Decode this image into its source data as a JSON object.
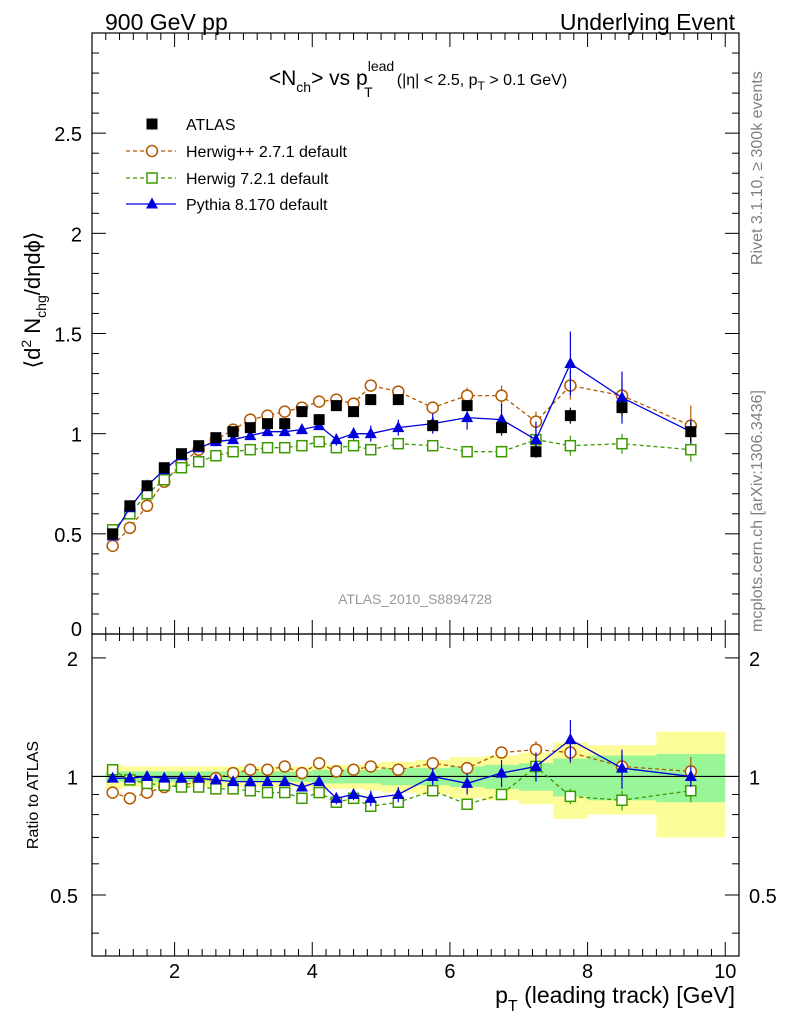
{
  "header": {
    "left": "900 GeV pp",
    "right": "Underlying Event"
  },
  "side_text": {
    "rivet": "Rivet 3.1.10, ≥ 300k events",
    "mcplots": "mcplots.cern.ch [arXiv:1306.3436]"
  },
  "chart_data": [
    {
      "type": "scatter",
      "title": {
        "part1": "<N",
        "sub1": "ch",
        "part2": "> vs p",
        "sup2": "lead",
        "sub2": "T",
        "cuts_a": "(|η| < 2.5, p",
        "cuts_sub": "T",
        "cuts_b": " > 0.1 GeV)"
      },
      "ylabel": {
        "a": "⟨d",
        "sup": "2",
        "b": " N",
        "sub": "chg",
        "c": "/dηdϕ⟩"
      },
      "ylim": [
        0,
        3
      ],
      "yticks": [
        0.5,
        1,
        1.5,
        2,
        2.5
      ],
      "ytick_labels": [
        "0.5",
        "1",
        "1.5",
        "2",
        "2.5"
      ],
      "watermark": "ATLAS_2010_S8894728",
      "series": [
        {
          "name": "ATLAS",
          "color": "#000000",
          "marker": "filled-square",
          "x": [
            1.1,
            1.35,
            1.6,
            1.85,
            2.1,
            2.35,
            2.6,
            2.85,
            3.1,
            3.35,
            3.6,
            3.85,
            4.1,
            4.35,
            4.6,
            4.85,
            5.25,
            5.75,
            6.25,
            6.75,
            7.25,
            7.75,
            8.5,
            9.5
          ],
          "y": [
            0.5,
            0.64,
            0.74,
            0.83,
            0.9,
            0.94,
            0.98,
            1.01,
            1.03,
            1.05,
            1.05,
            1.11,
            1.07,
            1.14,
            1.11,
            1.17,
            1.17,
            1.04,
            1.14,
            1.03,
            0.91,
            1.09,
            1.13,
            1.01
          ],
          "yerr": [
            0.01,
            0.01,
            0.01,
            0.01,
            0.01,
            0.01,
            0.01,
            0.01,
            0.01,
            0.01,
            0.01,
            0.01,
            0.01,
            0.01,
            0.01,
            0.01,
            0.02,
            0.02,
            0.02,
            0.03,
            0.03,
            0.04,
            0.04,
            0.05
          ]
        },
        {
          "name": "Herwig++ 2.7.1 default",
          "color": "#b35900",
          "marker": "open-circle",
          "line": "dashed",
          "x": [
            1.1,
            1.35,
            1.6,
            1.85,
            2.1,
            2.35,
            2.6,
            2.85,
            3.1,
            3.35,
            3.6,
            3.85,
            4.1,
            4.35,
            4.6,
            4.85,
            5.25,
            5.75,
            6.25,
            6.75,
            7.25,
            7.75,
            8.5,
            9.5
          ],
          "y": [
            0.44,
            0.53,
            0.64,
            0.76,
            0.85,
            0.92,
            0.97,
            1.02,
            1.07,
            1.09,
            1.11,
            1.13,
            1.16,
            1.17,
            1.15,
            1.24,
            1.21,
            1.13,
            1.19,
            1.19,
            1.06,
            1.24,
            1.19,
            1.04
          ],
          "yerr": [
            0.01,
            0.01,
            0.01,
            0.01,
            0.01,
            0.01,
            0.01,
            0.01,
            0.01,
            0.01,
            0.01,
            0.01,
            0.01,
            0.01,
            0.02,
            0.02,
            0.02,
            0.03,
            0.04,
            0.05,
            0.05,
            0.07,
            0.08,
            0.1
          ]
        },
        {
          "name": "Herwig 7.2.1 default",
          "color": "#3c9a00",
          "marker": "open-square",
          "line": "dashed",
          "x": [
            1.1,
            1.35,
            1.6,
            1.85,
            2.1,
            2.35,
            2.6,
            2.85,
            3.1,
            3.35,
            3.6,
            3.85,
            4.1,
            4.35,
            4.6,
            4.85,
            5.25,
            5.75,
            6.25,
            6.75,
            7.25,
            7.75,
            8.5,
            9.5
          ],
          "y": [
            0.52,
            0.6,
            0.7,
            0.77,
            0.83,
            0.86,
            0.89,
            0.91,
            0.92,
            0.93,
            0.93,
            0.94,
            0.96,
            0.93,
            0.94,
            0.92,
            0.95,
            0.94,
            0.91,
            0.91,
            0.97,
            0.94,
            0.95,
            0.92
          ],
          "yerr": [
            0.01,
            0.01,
            0.01,
            0.01,
            0.01,
            0.01,
            0.01,
            0.01,
            0.01,
            0.01,
            0.01,
            0.01,
            0.01,
            0.01,
            0.02,
            0.02,
            0.02,
            0.02,
            0.02,
            0.03,
            0.04,
            0.05,
            0.05,
            0.06
          ]
        },
        {
          "name": "Pythia 8.170 default",
          "color": "#0000dd",
          "marker": "filled-triangle",
          "line": "solid",
          "x": [
            1.1,
            1.35,
            1.6,
            1.85,
            2.1,
            2.35,
            2.6,
            2.85,
            3.1,
            3.35,
            3.6,
            3.85,
            4.1,
            4.35,
            4.6,
            4.85,
            5.25,
            5.75,
            6.25,
            6.75,
            7.25,
            7.75,
            8.5,
            9.5
          ],
          "y": [
            0.49,
            0.63,
            0.74,
            0.82,
            0.89,
            0.93,
            0.96,
            0.97,
            0.99,
            1.01,
            1.01,
            1.02,
            1.04,
            0.97,
            1.0,
            1.0,
            1.03,
            1.05,
            1.08,
            1.07,
            0.97,
            1.35,
            1.18,
            1.01
          ],
          "yerr": [
            0.01,
            0.01,
            0.01,
            0.01,
            0.01,
            0.01,
            0.01,
            0.01,
            0.01,
            0.02,
            0.02,
            0.02,
            0.02,
            0.03,
            0.03,
            0.04,
            0.04,
            0.05,
            0.06,
            0.08,
            0.09,
            0.16,
            0.13,
            0.06
          ]
        }
      ]
    },
    {
      "type": "scatter",
      "ylabel": "Ratio to ATLAS",
      "ylim": [
        0.35,
        2.3
      ],
      "yticks": [
        0.5,
        1,
        2
      ],
      "ytick_labels": [
        "0.5",
        "1",
        "2"
      ],
      "xlabel": {
        "a": "p",
        "sub": "T",
        "b": " (leading track) [GeV]"
      },
      "xlim": [
        0.8,
        10.2
      ],
      "xticks": [
        2,
        4,
        6,
        8,
        10
      ],
      "xtick_labels": [
        "2",
        "4",
        "6",
        "8",
        "10"
      ],
      "band_colors": {
        "inner": "#98f598",
        "outer": "#fcfc98"
      },
      "bands": [
        {
          "x0": 1.0,
          "x1": 1.25,
          "inner": 0.03,
          "outer": 0.07
        },
        {
          "x0": 1.25,
          "x1": 1.5,
          "inner": 0.03,
          "outer": 0.06
        },
        {
          "x0": 1.5,
          "x1": 1.75,
          "inner": 0.03,
          "outer": 0.06
        },
        {
          "x0": 1.75,
          "x1": 2.0,
          "inner": 0.03,
          "outer": 0.06
        },
        {
          "x0": 2.0,
          "x1": 2.25,
          "inner": 0.03,
          "outer": 0.06
        },
        {
          "x0": 2.25,
          "x1": 2.5,
          "inner": 0.03,
          "outer": 0.06
        },
        {
          "x0": 2.5,
          "x1": 2.75,
          "inner": 0.03,
          "outer": 0.06
        },
        {
          "x0": 2.75,
          "x1": 3.0,
          "inner": 0.03,
          "outer": 0.06
        },
        {
          "x0": 3.0,
          "x1": 3.25,
          "inner": 0.03,
          "outer": 0.06
        },
        {
          "x0": 3.25,
          "x1": 3.5,
          "inner": 0.03,
          "outer": 0.06
        },
        {
          "x0": 3.5,
          "x1": 3.75,
          "inner": 0.03,
          "outer": 0.06
        },
        {
          "x0": 3.75,
          "x1": 4.0,
          "inner": 0.03,
          "outer": 0.06
        },
        {
          "x0": 4.0,
          "x1": 4.25,
          "inner": 0.04,
          "outer": 0.07
        },
        {
          "x0": 4.25,
          "x1": 4.5,
          "inner": 0.04,
          "outer": 0.07
        },
        {
          "x0": 4.5,
          "x1": 4.75,
          "inner": 0.04,
          "outer": 0.07
        },
        {
          "x0": 4.75,
          "x1": 5.0,
          "inner": 0.04,
          "outer": 0.08
        },
        {
          "x0": 5.0,
          "x1": 5.5,
          "inner": 0.05,
          "outer": 0.09
        },
        {
          "x0": 5.5,
          "x1": 6.0,
          "inner": 0.05,
          "outer": 0.1
        },
        {
          "x0": 6.0,
          "x1": 6.5,
          "inner": 0.06,
          "outer": 0.12
        },
        {
          "x0": 6.5,
          "x1": 7.0,
          "inner": 0.07,
          "outer": 0.13
        },
        {
          "x0": 7.0,
          "x1": 7.5,
          "inner": 0.08,
          "outer": 0.15
        },
        {
          "x0": 7.5,
          "x1": 8.0,
          "inner": 0.11,
          "outer": 0.22
        },
        {
          "x0": 8.0,
          "x1": 9.0,
          "inner": 0.13,
          "outer": 0.2
        },
        {
          "x0": 9.0,
          "x1": 10.0,
          "inner": 0.14,
          "outer": 0.3
        }
      ],
      "series": [
        {
          "name": "Herwig++ 2.7.1 default",
          "color": "#b35900",
          "marker": "open-circle",
          "line": "dashed",
          "x": [
            1.1,
            1.35,
            1.6,
            1.85,
            2.1,
            2.35,
            2.6,
            2.85,
            3.1,
            3.35,
            3.6,
            3.85,
            4.1,
            4.35,
            4.6,
            4.85,
            5.25,
            5.75,
            6.25,
            6.75,
            7.25,
            7.75,
            8.5,
            9.5
          ],
          "y": [
            0.91,
            0.88,
            0.91,
            0.94,
            0.95,
            0.97,
            0.99,
            1.02,
            1.04,
            1.04,
            1.06,
            1.02,
            1.08,
            1.03,
            1.04,
            1.06,
            1.04,
            1.08,
            1.05,
            1.15,
            1.17,
            1.15,
            1.06,
            1.03
          ],
          "yerr": [
            0.01,
            0.01,
            0.01,
            0.01,
            0.01,
            0.01,
            0.01,
            0.01,
            0.01,
            0.01,
            0.01,
            0.01,
            0.01,
            0.01,
            0.01,
            0.02,
            0.02,
            0.03,
            0.03,
            0.04,
            0.06,
            0.07,
            0.08,
            0.09
          ]
        },
        {
          "name": "Herwig 7.2.1 default",
          "color": "#3c9a00",
          "marker": "open-square",
          "line": "dashed",
          "x": [
            1.1,
            1.35,
            1.6,
            1.85,
            2.1,
            2.35,
            2.6,
            2.85,
            3.1,
            3.35,
            3.6,
            3.85,
            4.1,
            4.35,
            4.6,
            4.85,
            5.25,
            5.75,
            6.25,
            6.75,
            7.25,
            7.75,
            8.5,
            9.5
          ],
          "y": [
            1.04,
            0.98,
            0.96,
            0.95,
            0.94,
            0.94,
            0.93,
            0.93,
            0.92,
            0.91,
            0.91,
            0.88,
            0.91,
            0.86,
            0.88,
            0.84,
            0.86,
            0.92,
            0.85,
            0.9,
            1.06,
            0.89,
            0.87,
            0.92
          ],
          "yerr": [
            0.01,
            0.01,
            0.01,
            0.01,
            0.01,
            0.01,
            0.01,
            0.01,
            0.01,
            0.01,
            0.01,
            0.01,
            0.01,
            0.01,
            0.02,
            0.02,
            0.02,
            0.02,
            0.02,
            0.03,
            0.04,
            0.04,
            0.05,
            0.06
          ]
        },
        {
          "name": "Pythia 8.170 default",
          "color": "#0000dd",
          "marker": "filled-triangle",
          "line": "solid",
          "x": [
            1.1,
            1.35,
            1.6,
            1.85,
            2.1,
            2.35,
            2.6,
            2.85,
            3.1,
            3.35,
            3.6,
            3.85,
            4.1,
            4.35,
            4.6,
            4.85,
            5.25,
            5.75,
            6.25,
            6.75,
            7.25,
            7.75,
            8.5,
            9.5
          ],
          "y": [
            0.99,
            0.99,
            1.0,
            0.99,
            0.99,
            0.99,
            0.98,
            0.97,
            0.97,
            0.97,
            0.97,
            0.94,
            0.97,
            0.88,
            0.9,
            0.88,
            0.9,
            1.0,
            0.96,
            1.02,
            1.06,
            1.24,
            1.05,
            1.0
          ],
          "yerr": [
            0.01,
            0.01,
            0.01,
            0.01,
            0.01,
            0.01,
            0.01,
            0.01,
            0.01,
            0.01,
            0.02,
            0.02,
            0.02,
            0.03,
            0.03,
            0.04,
            0.04,
            0.05,
            0.06,
            0.08,
            0.09,
            0.15,
            0.12,
            0.06
          ]
        }
      ]
    }
  ]
}
